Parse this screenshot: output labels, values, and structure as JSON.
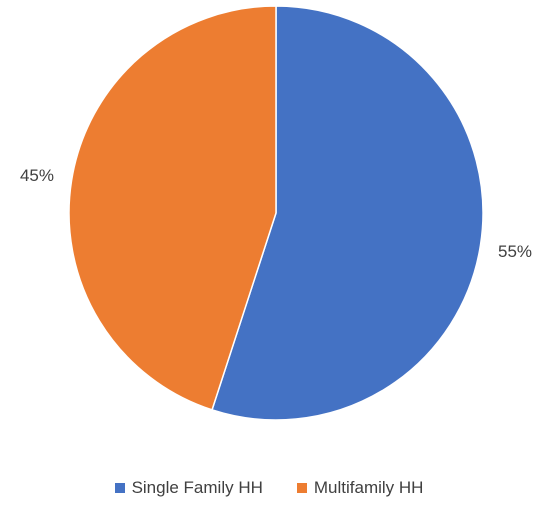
{
  "chart_data": {
    "type": "pie",
    "title": "",
    "categories": [
      "Single Family HH",
      "Multifamily HH"
    ],
    "values": [
      55,
      45
    ],
    "data_labels": [
      "55%",
      "45%"
    ],
    "colors": [
      "#4472C4",
      "#ED7D31"
    ],
    "legend_placement": "bottom"
  }
}
